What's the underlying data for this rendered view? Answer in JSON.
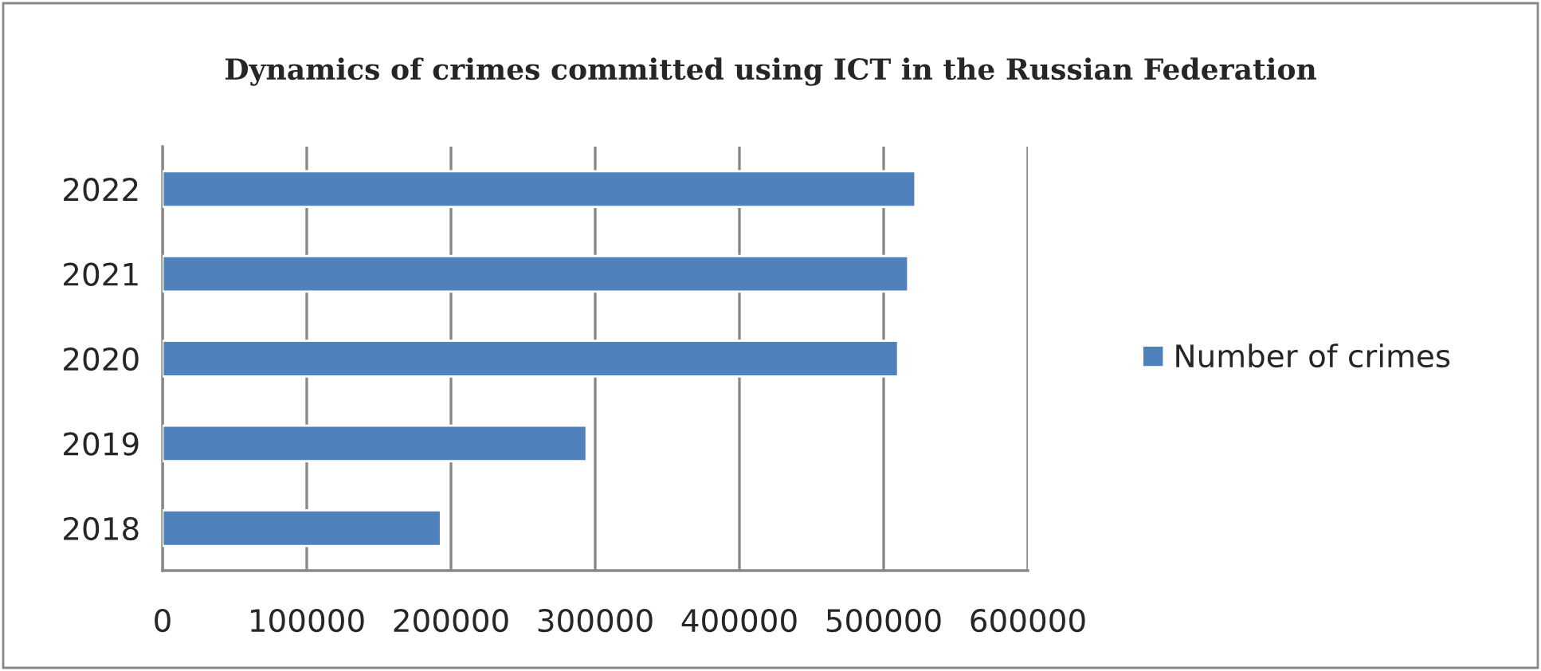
{
  "chart_data": {
    "type": "bar",
    "orientation": "horizontal",
    "title": "Dynamics of crimes committed using ICT in the Russian Federation",
    "categories": [
      "2022",
      "2021",
      "2020",
      "2019",
      "2018"
    ],
    "series": [
      {
        "name": "Number of crimes",
        "color": "#4f81bd",
        "values": [
          522000,
          517000,
          510000,
          294000,
          193000
        ]
      }
    ],
    "xlim": [
      0,
      600000
    ],
    "xticks": [
      0,
      100000,
      200000,
      300000,
      400000,
      500000,
      600000
    ],
    "grid": "x",
    "legend": "right"
  }
}
